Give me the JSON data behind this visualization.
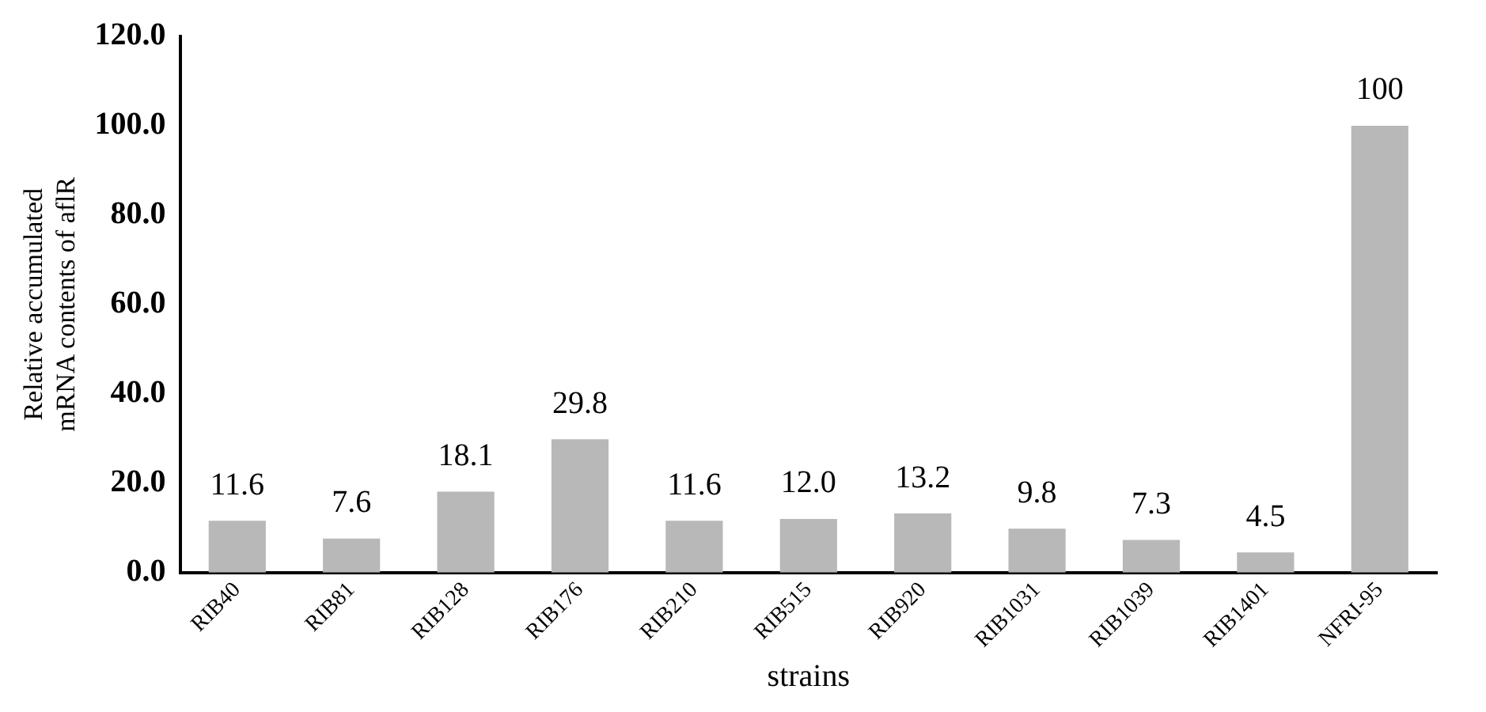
{
  "chart_data": {
    "type": "bar",
    "xlabel": "strains",
    "ylabel": "Relative accumulated\nmRNA contents of aflR",
    "categories": [
      "RIB40",
      "RIB81",
      "RIB128",
      "RIB176",
      "RIB210",
      "RIB515",
      "RIB920",
      "RIB1031",
      "RIB1039",
      "RIB1401",
      "NFRI-95"
    ],
    "values": [
      11.6,
      7.6,
      18.1,
      29.8,
      11.6,
      12.0,
      13.2,
      9.8,
      7.3,
      4.5,
      100
    ],
    "value_labels": [
      "11.6",
      "7.6",
      "18.1",
      "29.8",
      "11.6",
      "12.0",
      "13.2",
      "9.8",
      "7.3",
      "4.5",
      "100"
    ],
    "color": "#b8b8b8",
    "ylim": [
      0,
      120
    ],
    "yticks": [
      {
        "value": 0,
        "label": "0.0"
      },
      {
        "value": 20,
        "label": "20.0"
      },
      {
        "value": 40,
        "label": "40.0"
      },
      {
        "value": 60,
        "label": "60.0"
      },
      {
        "value": 80,
        "label": "80.0"
      },
      {
        "value": 100,
        "label": "100.0"
      },
      {
        "value": 120,
        "label": "120.0"
      }
    ],
    "grid": false,
    "legend": false
  }
}
